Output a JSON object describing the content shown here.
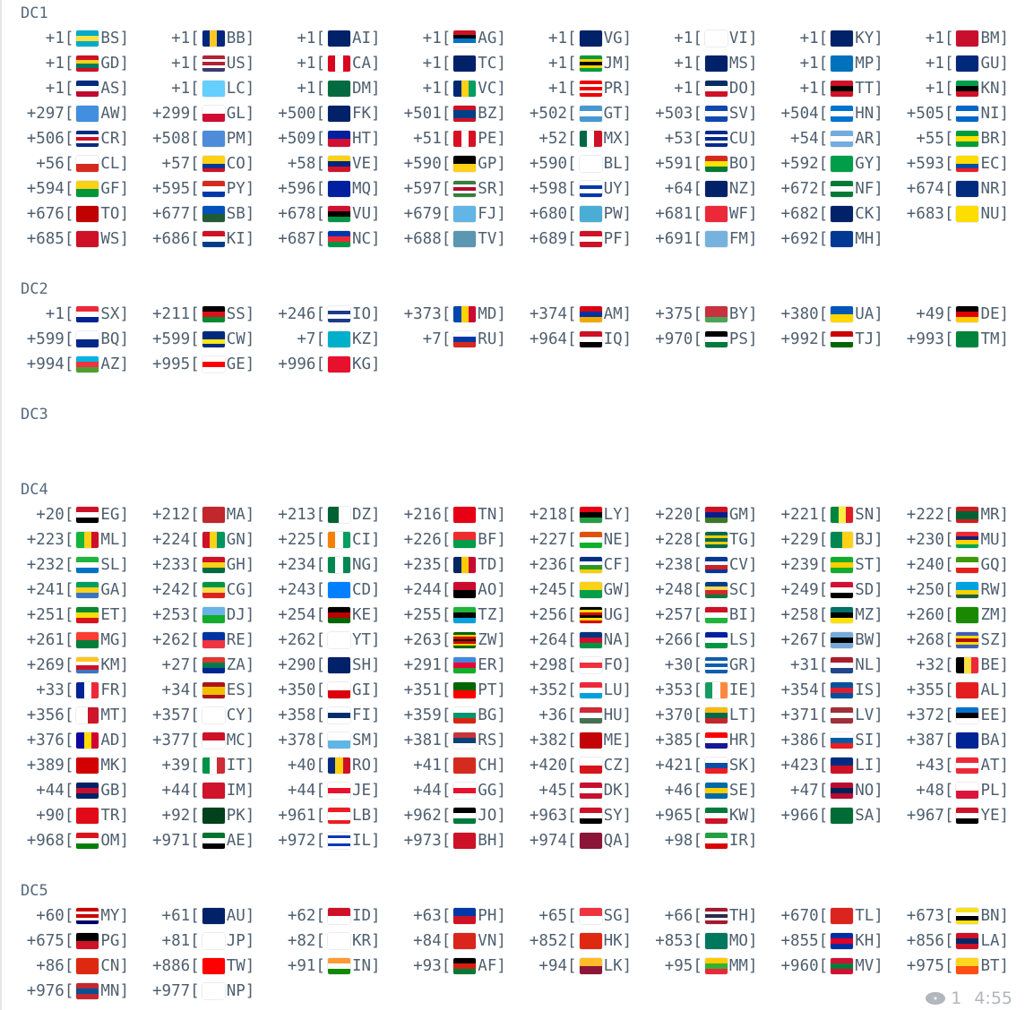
{
  "sections": [
    {
      "label": "DC1",
      "entries": [
        [
          "+1",
          "BS"
        ],
        [
          "+1",
          "BB"
        ],
        [
          "+1",
          "AI"
        ],
        [
          "+1",
          "AG"
        ],
        [
          "+1",
          "VG"
        ],
        [
          "+1",
          "VI"
        ],
        [
          "+1",
          "KY"
        ],
        [
          "+1",
          "BM"
        ],
        [
          "+1",
          "GD"
        ],
        [
          "+1",
          "US"
        ],
        [
          "+1",
          "CA"
        ],
        [
          "+1",
          "TC"
        ],
        [
          "+1",
          "JM"
        ],
        [
          "+1",
          "MS"
        ],
        [
          "+1",
          "MP"
        ],
        [
          "+1",
          "GU"
        ],
        [
          "+1",
          "AS"
        ],
        [
          "+1",
          "LC"
        ],
        [
          "+1",
          "DM"
        ],
        [
          "+1",
          "VC"
        ],
        [
          "+1",
          "PR"
        ],
        [
          "+1",
          "DO"
        ],
        [
          "+1",
          "TT"
        ],
        [
          "+1",
          "KN"
        ],
        [
          "+297",
          "AW"
        ],
        [
          "+299",
          "GL"
        ],
        [
          "+500",
          "FK"
        ],
        [
          "+501",
          "BZ"
        ],
        [
          "+502",
          "GT"
        ],
        [
          "+503",
          "SV"
        ],
        [
          "+504",
          "HN"
        ],
        [
          "+505",
          "NI"
        ],
        [
          "+506",
          "CR"
        ],
        [
          "+508",
          "PM"
        ],
        [
          "+509",
          "HT"
        ],
        [
          "+51",
          "PE"
        ],
        [
          "+52",
          "MX"
        ],
        [
          "+53",
          "CU"
        ],
        [
          "+54",
          "AR"
        ],
        [
          "+55",
          "BR"
        ],
        [
          "+56",
          "CL"
        ],
        [
          "+57",
          "CO"
        ],
        [
          "+58",
          "VE"
        ],
        [
          "+590",
          "GP"
        ],
        [
          "+590",
          "BL"
        ],
        [
          "+591",
          "BO"
        ],
        [
          "+592",
          "GY"
        ],
        [
          "+593",
          "EC"
        ],
        [
          "+594",
          "GF"
        ],
        [
          "+595",
          "PY"
        ],
        [
          "+596",
          "MQ"
        ],
        [
          "+597",
          "SR"
        ],
        [
          "+598",
          "UY"
        ],
        [
          "+64",
          "NZ"
        ],
        [
          "+672",
          "NF"
        ],
        [
          "+674",
          "NR"
        ],
        [
          "+676",
          "TO"
        ],
        [
          "+677",
          "SB"
        ],
        [
          "+678",
          "VU"
        ],
        [
          "+679",
          "FJ"
        ],
        [
          "+680",
          "PW"
        ],
        [
          "+681",
          "WF"
        ],
        [
          "+682",
          "CK"
        ],
        [
          "+683",
          "NU"
        ],
        [
          "+685",
          "WS"
        ],
        [
          "+686",
          "KI"
        ],
        [
          "+687",
          "NC"
        ],
        [
          "+688",
          "TV"
        ],
        [
          "+689",
          "PF"
        ],
        [
          "+691",
          "FM"
        ],
        [
          "+692",
          "MH"
        ]
      ],
      "extra_rows": 0
    },
    {
      "label": "DC2",
      "entries": [
        [
          "+1",
          "SX"
        ],
        [
          "+211",
          "SS"
        ],
        [
          "+246",
          "IO"
        ],
        [
          "+373",
          "MD"
        ],
        [
          "+374",
          "AM"
        ],
        [
          "+375",
          "BY"
        ],
        [
          "+380",
          "UA"
        ],
        [
          "+49",
          "DE"
        ],
        [
          "+599",
          "BQ"
        ],
        [
          "+599",
          "CW"
        ],
        [
          "+7",
          "KZ"
        ],
        [
          "+7",
          "RU"
        ],
        [
          "+964",
          "IQ"
        ],
        [
          "+970",
          "PS"
        ],
        [
          "+992",
          "TJ"
        ],
        [
          "+993",
          "TM"
        ],
        [
          "+994",
          "AZ"
        ],
        [
          "+995",
          "GE"
        ],
        [
          "+996",
          "KG"
        ]
      ],
      "extra_rows": 0
    },
    {
      "label": "DC3",
      "entries": [],
      "extra_rows": 2
    },
    {
      "label": "DC4",
      "entries": [
        [
          "+20",
          "EG"
        ],
        [
          "+212",
          "MA"
        ],
        [
          "+213",
          "DZ"
        ],
        [
          "+216",
          "TN"
        ],
        [
          "+218",
          "LY"
        ],
        [
          "+220",
          "GM"
        ],
        [
          "+221",
          "SN"
        ],
        [
          "+222",
          "MR"
        ],
        [
          "+223",
          "ML"
        ],
        [
          "+224",
          "GN"
        ],
        [
          "+225",
          "CI"
        ],
        [
          "+226",
          "BF"
        ],
        [
          "+227",
          "NE"
        ],
        [
          "+228",
          "TG"
        ],
        [
          "+229",
          "BJ"
        ],
        [
          "+230",
          "MU"
        ],
        [
          "+232",
          "SL"
        ],
        [
          "+233",
          "GH"
        ],
        [
          "+234",
          "NG"
        ],
        [
          "+235",
          "TD"
        ],
        [
          "+236",
          "CF"
        ],
        [
          "+238",
          "CV"
        ],
        [
          "+239",
          "ST"
        ],
        [
          "+240",
          "GQ"
        ],
        [
          "+241",
          "GA"
        ],
        [
          "+242",
          "CG"
        ],
        [
          "+243",
          "CD"
        ],
        [
          "+244",
          "AO"
        ],
        [
          "+245",
          "GW"
        ],
        [
          "+248",
          "SC"
        ],
        [
          "+249",
          "SD"
        ],
        [
          "+250",
          "RW"
        ],
        [
          "+251",
          "ET"
        ],
        [
          "+253",
          "DJ"
        ],
        [
          "+254",
          "KE"
        ],
        [
          "+255",
          "TZ"
        ],
        [
          "+256",
          "UG"
        ],
        [
          "+257",
          "BI"
        ],
        [
          "+258",
          "MZ"
        ],
        [
          "+260",
          "ZM"
        ],
        [
          "+261",
          "MG"
        ],
        [
          "+262",
          "RE"
        ],
        [
          "+262",
          "YT"
        ],
        [
          "+263",
          "ZW"
        ],
        [
          "+264",
          "NA"
        ],
        [
          "+266",
          "LS"
        ],
        [
          "+267",
          "BW"
        ],
        [
          "+268",
          "SZ"
        ],
        [
          "+269",
          "KM"
        ],
        [
          "+27",
          "ZA"
        ],
        [
          "+290",
          "SH"
        ],
        [
          "+291",
          "ER"
        ],
        [
          "+298",
          "FO"
        ],
        [
          "+30",
          "GR"
        ],
        [
          "+31",
          "NL"
        ],
        [
          "+32",
          "BE"
        ],
        [
          "+33",
          "FR"
        ],
        [
          "+34",
          "ES"
        ],
        [
          "+350",
          "GI"
        ],
        [
          "+351",
          "PT"
        ],
        [
          "+352",
          "LU"
        ],
        [
          "+353",
          "IE"
        ],
        [
          "+354",
          "IS"
        ],
        [
          "+355",
          "AL"
        ],
        [
          "+356",
          "MT"
        ],
        [
          "+357",
          "CY"
        ],
        [
          "+358",
          "FI"
        ],
        [
          "+359",
          "BG"
        ],
        [
          "+36",
          "HU"
        ],
        [
          "+370",
          "LT"
        ],
        [
          "+371",
          "LV"
        ],
        [
          "+372",
          "EE"
        ],
        [
          "+376",
          "AD"
        ],
        [
          "+377",
          "MC"
        ],
        [
          "+378",
          "SM"
        ],
        [
          "+381",
          "RS"
        ],
        [
          "+382",
          "ME"
        ],
        [
          "+385",
          "HR"
        ],
        [
          "+386",
          "SI"
        ],
        [
          "+387",
          "BA"
        ],
        [
          "+389",
          "MK"
        ],
        [
          "+39",
          "IT"
        ],
        [
          "+40",
          "RO"
        ],
        [
          "+41",
          "CH"
        ],
        [
          "+420",
          "CZ"
        ],
        [
          "+421",
          "SK"
        ],
        [
          "+423",
          "LI"
        ],
        [
          "+43",
          "AT"
        ],
        [
          "+44",
          "GB"
        ],
        [
          "+44",
          "IM"
        ],
        [
          "+44",
          "JE"
        ],
        [
          "+44",
          "GG"
        ],
        [
          "+45",
          "DK"
        ],
        [
          "+46",
          "SE"
        ],
        [
          "+47",
          "NO"
        ],
        [
          "+48",
          "PL"
        ],
        [
          "+90",
          "TR"
        ],
        [
          "+92",
          "PK"
        ],
        [
          "+961",
          "LB"
        ],
        [
          "+962",
          "JO"
        ],
        [
          "+963",
          "SY"
        ],
        [
          "+965",
          "KW"
        ],
        [
          "+966",
          "SA"
        ],
        [
          "+967",
          "YE"
        ],
        [
          "+968",
          "OM"
        ],
        [
          "+971",
          "AE"
        ],
        [
          "+972",
          "IL"
        ],
        [
          "+973",
          "BH"
        ],
        [
          "+974",
          "QA"
        ],
        [
          "+98",
          "IR"
        ]
      ],
      "extra_rows": 0
    },
    {
      "label": "DC5",
      "entries": [
        [
          "+60",
          "MY"
        ],
        [
          "+61",
          "AU"
        ],
        [
          "+62",
          "ID"
        ],
        [
          "+63",
          "PH"
        ],
        [
          "+65",
          "SG"
        ],
        [
          "+66",
          "TH"
        ],
        [
          "+670",
          "TL"
        ],
        [
          "+673",
          "BN"
        ],
        [
          "+675",
          "PG"
        ],
        [
          "+81",
          "JP"
        ],
        [
          "+82",
          "KR"
        ],
        [
          "+84",
          "VN"
        ],
        [
          "+852",
          "HK"
        ],
        [
          "+853",
          "MO"
        ],
        [
          "+855",
          "KH"
        ],
        [
          "+856",
          "LA"
        ],
        [
          "+86",
          "CN"
        ],
        [
          "+886",
          "TW"
        ],
        [
          "+91",
          "IN"
        ],
        [
          "+93",
          "AF"
        ],
        [
          "+94",
          "LK"
        ],
        [
          "+95",
          "MM"
        ],
        [
          "+960",
          "MV"
        ],
        [
          "+975",
          "BT"
        ],
        [
          "+976",
          "MN"
        ],
        [
          "+977",
          "NP"
        ]
      ],
      "extra_rows": 0
    }
  ],
  "footer": {
    "views": "1",
    "time": "4:55",
    "views_icon": "eye-icon"
  },
  "colors": {
    "text": "#4f5f6f",
    "meta": "#b0b6bc"
  }
}
